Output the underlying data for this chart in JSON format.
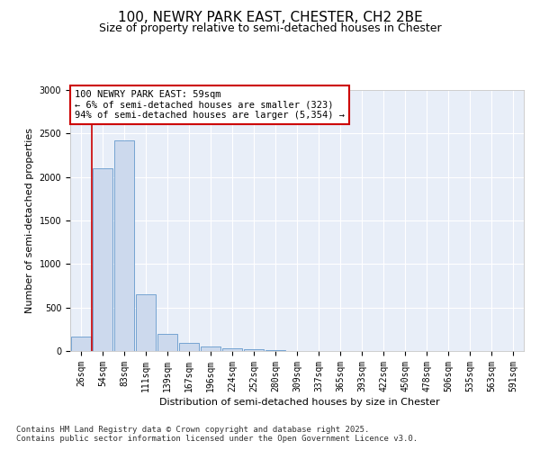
{
  "title_line1": "100, NEWRY PARK EAST, CHESTER, CH2 2BE",
  "title_line2": "Size of property relative to semi-detached houses in Chester",
  "xlabel": "Distribution of semi-detached houses by size in Chester",
  "ylabel": "Number of semi-detached properties",
  "bar_color": "#ccd9ed",
  "bar_edge_color": "#6699cc",
  "highlight_line_color": "#cc0000",
  "annotation_text": "100 NEWRY PARK EAST: 59sqm\n← 6% of semi-detached houses are smaller (323)\n94% of semi-detached houses are larger (5,354) →",
  "annotation_box_color": "#ffffff",
  "annotation_box_edge_color": "#cc0000",
  "categories": [
    "26sqm",
    "54sqm",
    "83sqm",
    "111sqm",
    "139sqm",
    "167sqm",
    "196sqm",
    "224sqm",
    "252sqm",
    "280sqm",
    "309sqm",
    "337sqm",
    "365sqm",
    "393sqm",
    "422sqm",
    "450sqm",
    "478sqm",
    "506sqm",
    "535sqm",
    "563sqm",
    "591sqm"
  ],
  "values": [
    170,
    2100,
    2420,
    650,
    195,
    90,
    48,
    32,
    22,
    8,
    2,
    0,
    0,
    0,
    0,
    0,
    0,
    0,
    0,
    0,
    0
  ],
  "ylim": [
    0,
    3000
  ],
  "yticks": [
    0,
    500,
    1000,
    1500,
    2000,
    2500,
    3000
  ],
  "background_color": "#e8eef8",
  "grid_color": "#ffffff",
  "footer_text": "Contains HM Land Registry data © Crown copyright and database right 2025.\nContains public sector information licensed under the Open Government Licence v3.0.",
  "title_fontsize": 11,
  "subtitle_fontsize": 9,
  "axis_label_fontsize": 8,
  "tick_fontsize": 7,
  "footer_fontsize": 6.5,
  "annotation_fontsize": 7.5
}
